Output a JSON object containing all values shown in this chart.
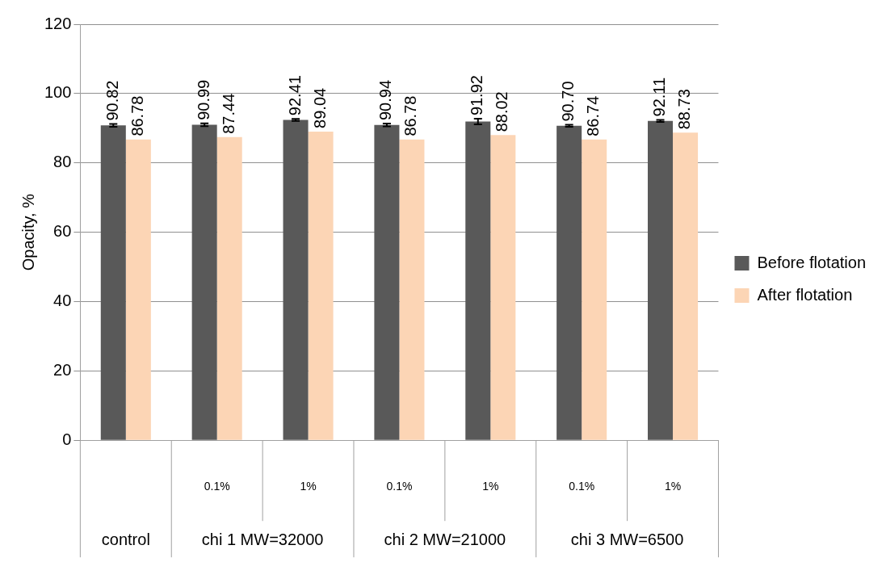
{
  "chart_data": {
    "type": "bar",
    "ylabel": "Opacity, %",
    "categories": [
      null,
      "0.1%",
      "1%",
      "0.1%",
      "1%",
      "0.1%",
      "1%"
    ],
    "series": [
      {
        "name": "Before flotation",
        "color": "#595959",
        "values": [
          90.82,
          90.99,
          92.41,
          90.94,
          91.92,
          90.7,
          92.11
        ],
        "value_labels": [
          "90.82",
          "90.99",
          "92.41",
          "90.94",
          "91.92",
          "90.70",
          "92.11"
        ],
        "errors": [
          0.4,
          0.4,
          0.3,
          0.4,
          0.8,
          0.3,
          0.3
        ]
      },
      {
        "name": "After flotation",
        "color": "#fcd5b5",
        "values": [
          86.78,
          87.44,
          89.04,
          86.78,
          88.02,
          86.74,
          88.73
        ],
        "value_labels": [
          "86.78",
          "87.44",
          "89.04",
          "86.78",
          "88.02",
          "86.74",
          "88.73"
        ]
      }
    ],
    "annotations": [
      "control",
      "chi 1 MW=32000",
      "chi 2 MW=21000",
      "chi 3 MW=6500"
    ],
    "ylim": [
      0,
      120
    ],
    "yticks": [
      0,
      20,
      40,
      60,
      80,
      100,
      120
    ],
    "grid": "y",
    "legend": "right"
  }
}
